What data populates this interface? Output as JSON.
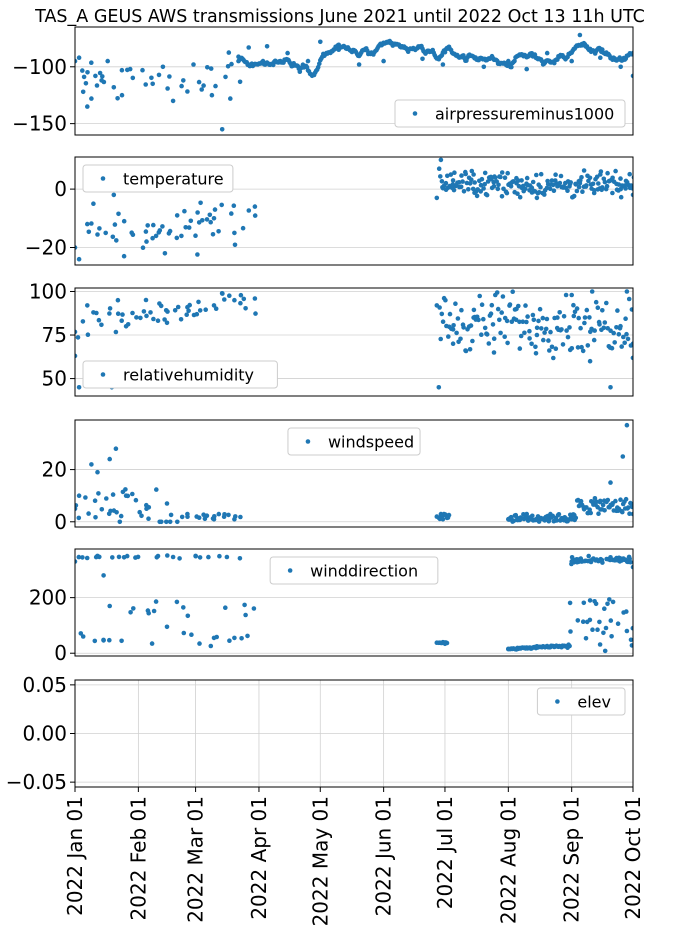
{
  "chart_data": {
    "type": "scatter",
    "title": "TAS_A GEUS AWS transmissions June 2021 until 2022 Oct 13 11h UTC",
    "x_axis": {
      "type": "date",
      "range": [
        "2022-01-01",
        "2022-10-01"
      ],
      "tick_labels": [
        "2022 Jan 01",
        "2022 Feb 01",
        "2022 Mar 01",
        "2022 Apr 01",
        "2022 May 01",
        "2022 Jun 01",
        "2022 Jul 01",
        "2022 Aug 01",
        "2022 Sep 01",
        "2022 Oct 01"
      ],
      "tick_dates": [
        "2022-01-01",
        "2022-02-01",
        "2022-03-01",
        "2022-04-01",
        "2022-05-01",
        "2022-06-01",
        "2022-07-01",
        "2022-08-01",
        "2022-09-01",
        "2022-10-01"
      ],
      "grid": true
    },
    "color": "#1f77b4",
    "panels": [
      {
        "series_name": "airpressureminus1000",
        "legend_loc": "lower-right",
        "ylim": [
          -160,
          -65
        ],
        "yticks": [
          -150,
          -100
        ],
        "ytick_labels": [
          "−150",
          "−100"
        ],
        "generator": {
          "kind": "pressure"
        },
        "points": [
          [
            "2022-01-01",
            -95
          ],
          [
            "2022-01-03",
            -92
          ],
          [
            "2022-01-05",
            -122
          ],
          [
            "2022-01-07",
            -135
          ],
          [
            "2022-01-09",
            -128
          ],
          [
            "2022-01-11",
            -108
          ],
          [
            "2022-01-14",
            -112
          ],
          [
            "2022-01-17",
            -95
          ],
          [
            "2022-01-20",
            -118
          ],
          [
            "2022-01-24",
            -125
          ],
          [
            "2022-01-28",
            -102
          ],
          [
            "2022-02-03",
            -103
          ],
          [
            "2022-02-08",
            -115
          ],
          [
            "2022-02-13",
            -100
          ],
          [
            "2022-02-18",
            -130
          ],
          [
            "2022-02-23",
            -112
          ],
          [
            "2022-02-28",
            -98
          ],
          [
            "2022-03-04",
            -120
          ],
          [
            "2022-03-09",
            -125
          ],
          [
            "2022-03-14",
            -155
          ],
          [
            "2022-03-18",
            -128
          ],
          [
            "2022-03-22",
            -95
          ],
          [
            "2022-03-27",
            -83
          ],
          [
            "2022-04-05",
            -82
          ],
          [
            "2022-04-15",
            -88
          ],
          [
            "2022-04-25",
            -95
          ],
          [
            "2022-05-01",
            -78
          ],
          [
            "2022-05-10",
            -85
          ],
          [
            "2022-05-20",
            -98
          ],
          [
            "2022-06-01",
            -95
          ],
          [
            "2022-06-10",
            -82
          ],
          [
            "2022-06-20",
            -93
          ],
          [
            "2022-06-30",
            -98
          ],
          [
            "2022-07-10",
            -90
          ],
          [
            "2022-07-20",
            -100
          ],
          [
            "2022-08-01",
            -95
          ],
          [
            "2022-08-10",
            -102
          ],
          [
            "2022-08-20",
            -88
          ],
          [
            "2022-09-01",
            -95
          ],
          [
            "2022-09-05",
            -72
          ],
          [
            "2022-09-15",
            -92
          ],
          [
            "2022-09-25",
            -100
          ],
          [
            "2022-10-01",
            -108
          ]
        ]
      },
      {
        "series_name": "temperature",
        "legend_loc": "upper-left",
        "ylim": [
          -26,
          11
        ],
        "yticks": [
          -20,
          0
        ],
        "ytick_labels": [
          "−20",
          "0"
        ],
        "generator": {
          "kind": "temperature"
        },
        "points": [
          [
            "2022-01-01",
            -20
          ],
          [
            "2022-01-03",
            -24
          ],
          [
            "2022-01-07",
            -12
          ],
          [
            "2022-01-10",
            -5
          ],
          [
            "2022-01-16",
            -15
          ],
          [
            "2022-01-20",
            -2
          ],
          [
            "2022-01-25",
            -23
          ],
          [
            "2022-02-05",
            -18
          ],
          [
            "2022-02-14",
            -22
          ],
          [
            "2022-02-20",
            -9
          ],
          [
            "2022-03-02",
            -8
          ],
          [
            "2022-03-10",
            -10
          ],
          [
            "2022-03-20",
            -15
          ],
          [
            "2022-03-30",
            -6
          ],
          [
            "2022-06-27",
            -3
          ],
          [
            "2022-06-29",
            10
          ],
          [
            "2022-07-05",
            3
          ],
          [
            "2022-07-15",
            5
          ],
          [
            "2022-07-25",
            1
          ],
          [
            "2022-08-05",
            2
          ],
          [
            "2022-08-15",
            -3
          ],
          [
            "2022-08-25",
            1
          ],
          [
            "2022-09-05",
            2
          ],
          [
            "2022-09-15",
            5
          ],
          [
            "2022-09-25",
            0
          ],
          [
            "2022-10-01",
            -2
          ]
        ]
      },
      {
        "series_name": "relativehumidity",
        "legend_loc": "lower-left",
        "ylim": [
          40,
          102
        ],
        "yticks": [
          50,
          75,
          100
        ],
        "ytick_labels": [
          "50",
          "75",
          "100"
        ],
        "generator": {
          "kind": "humidity"
        },
        "points": [
          [
            "2022-01-01",
            63
          ],
          [
            "2022-01-03",
            45
          ],
          [
            "2022-01-07",
            92
          ],
          [
            "2022-01-10",
            88
          ],
          [
            "2022-01-17",
            55
          ],
          [
            "2022-01-19",
            45
          ],
          [
            "2022-01-22",
            95
          ],
          [
            "2022-01-26",
            80
          ],
          [
            "2022-02-05",
            86
          ],
          [
            "2022-02-15",
            82
          ],
          [
            "2022-02-25",
            91
          ],
          [
            "2022-03-10",
            92
          ],
          [
            "2022-03-20",
            95
          ],
          [
            "2022-03-30",
            96
          ],
          [
            "2022-06-27",
            92
          ],
          [
            "2022-06-28",
            45
          ],
          [
            "2022-07-05",
            70
          ],
          [
            "2022-07-15",
            85
          ],
          [
            "2022-07-25",
            65
          ],
          [
            "2022-08-05",
            90
          ],
          [
            "2022-08-15",
            75
          ],
          [
            "2022-08-25",
            85
          ],
          [
            "2022-09-01",
            98
          ],
          [
            "2022-09-10",
            60
          ],
          [
            "2022-09-20",
            45
          ],
          [
            "2022-09-28",
            100
          ],
          [
            "2022-10-01",
            70
          ]
        ]
      },
      {
        "series_name": "windspeed",
        "legend_loc": "upper-center",
        "ylim": [
          -2,
          39
        ],
        "yticks": [
          0,
          20
        ],
        "ytick_labels": [
          "0",
          "20"
        ],
        "generator": {
          "kind": "windspeed"
        },
        "points": [
          [
            "2022-01-01",
            5
          ],
          [
            "2022-01-03",
            10
          ],
          [
            "2022-01-09",
            22
          ],
          [
            "2022-01-12",
            19
          ],
          [
            "2022-01-18",
            24
          ],
          [
            "2022-01-21",
            28
          ],
          [
            "2022-01-26",
            10
          ],
          [
            "2022-02-05",
            5
          ],
          [
            "2022-02-15",
            7
          ],
          [
            "2022-02-25",
            3
          ],
          [
            "2022-03-10",
            1
          ],
          [
            "2022-03-20",
            1
          ],
          [
            "2022-06-27",
            2
          ],
          [
            "2022-06-30",
            1
          ],
          [
            "2022-08-01",
            1
          ],
          [
            "2022-08-10",
            3
          ],
          [
            "2022-08-20",
            1
          ],
          [
            "2022-09-01",
            1
          ],
          [
            "2022-09-15",
            8
          ],
          [
            "2022-09-20",
            15
          ],
          [
            "2022-09-26",
            25
          ],
          [
            "2022-09-28",
            37
          ],
          [
            "2022-10-01",
            3
          ]
        ]
      },
      {
        "series_name": "winddirection",
        "legend_loc": "upper-center",
        "ylim": [
          -10,
          375
        ],
        "yticks": [
          0,
          200
        ],
        "ytick_labels": [
          "0",
          "200"
        ],
        "generator": {
          "kind": "winddirection"
        },
        "points": [
          [
            "2022-01-01",
            330
          ],
          [
            "2022-01-05",
            60
          ],
          [
            "2022-01-12",
            350
          ],
          [
            "2022-01-15",
            280
          ],
          [
            "2022-01-18",
            170
          ],
          [
            "2022-01-25",
            345
          ],
          [
            "2022-02-10",
            345
          ],
          [
            "2022-02-15",
            95
          ],
          [
            "2022-02-23",
            165
          ],
          [
            "2022-03-01",
            350
          ],
          [
            "2022-03-10",
            55
          ],
          [
            "2022-03-20",
            55
          ],
          [
            "2022-06-27",
            38
          ],
          [
            "2022-07-01",
            34
          ],
          [
            "2022-08-01",
            15
          ],
          [
            "2022-08-15",
            25
          ],
          [
            "2022-08-30",
            20
          ],
          [
            "2022-09-01",
            330
          ],
          [
            "2022-09-10",
            190
          ],
          [
            "2022-09-20",
            345
          ],
          [
            "2022-09-28",
            80
          ],
          [
            "2022-10-01",
            310
          ]
        ]
      },
      {
        "series_name": "elev",
        "legend_loc": "upper-right",
        "ylim": [
          -0.055,
          0.055
        ],
        "yticks": [
          -0.05,
          0.0,
          0.05
        ],
        "ytick_labels": [
          "−0.05",
          "0.00",
          "0.05"
        ],
        "generator": null,
        "points": []
      }
    ]
  }
}
